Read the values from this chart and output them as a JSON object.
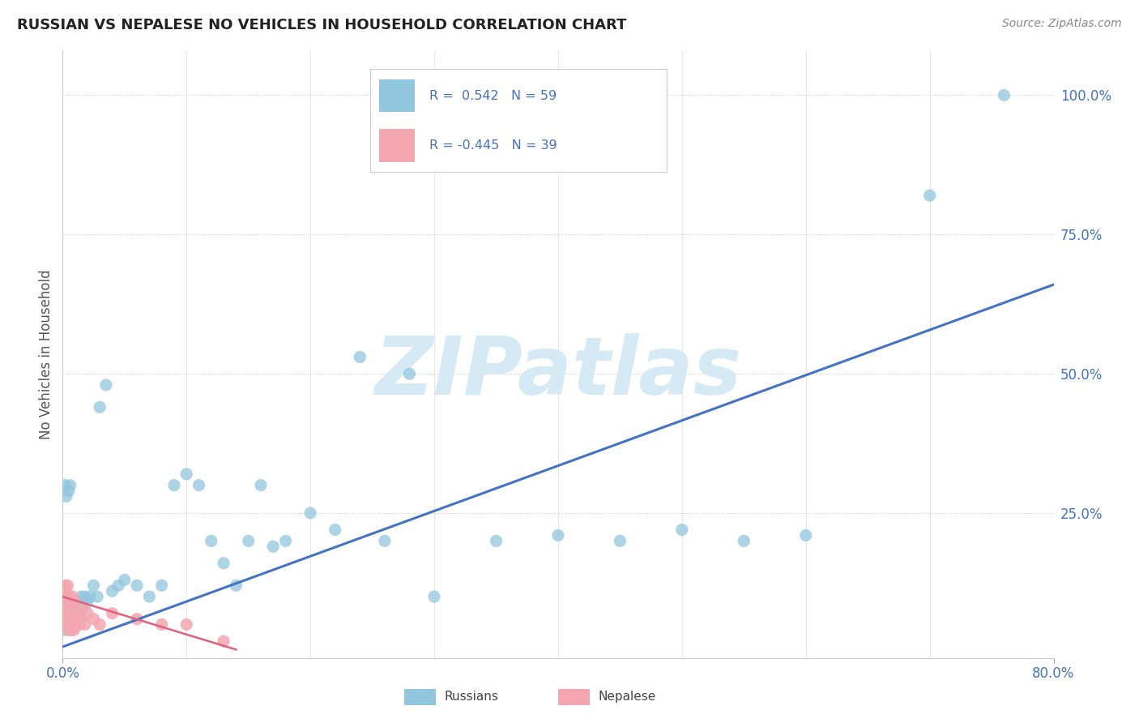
{
  "title": "RUSSIAN VS NEPALESE NO VEHICLES IN HOUSEHOLD CORRELATION CHART",
  "source": "Source: ZipAtlas.com",
  "ylabel": "No Vehicles in Household",
  "yticks": [
    0.0,
    0.25,
    0.5,
    0.75,
    1.0
  ],
  "ytick_labels": [
    "",
    "25.0%",
    "50.0%",
    "75.0%",
    "100.0%"
  ],
  "xlim": [
    0.0,
    0.8
  ],
  "ylim": [
    -0.01,
    1.08
  ],
  "russian_R": 0.542,
  "russian_N": 59,
  "nepalese_R": -0.445,
  "nepalese_N": 39,
  "russian_color": "#92C5DE",
  "nepalese_color": "#F4A7B0",
  "russian_line_color": "#4472C4",
  "nepalese_line_color": "#E06080",
  "watermark": "ZIPatlas",
  "watermark_color": "#D6EAF5",
  "background_color": "#FFFFFF",
  "russian_line_x0": 0.0,
  "russian_line_y0": 0.01,
  "russian_line_x1": 0.8,
  "russian_line_y1": 0.66,
  "nepalese_line_x0": 0.0,
  "nepalese_line_y0": 0.1,
  "nepalese_line_x1": 0.14,
  "nepalese_line_y1": 0.005,
  "russian_x": [
    0.001,
    0.002,
    0.002,
    0.003,
    0.003,
    0.004,
    0.004,
    0.005,
    0.005,
    0.006,
    0.006,
    0.007,
    0.007,
    0.008,
    0.009,
    0.01,
    0.011,
    0.012,
    0.013,
    0.014,
    0.015,
    0.016,
    0.018,
    0.02,
    0.022,
    0.025,
    0.028,
    0.03,
    0.035,
    0.04,
    0.045,
    0.05,
    0.06,
    0.07,
    0.08,
    0.09,
    0.1,
    0.11,
    0.12,
    0.13,
    0.14,
    0.15,
    0.16,
    0.17,
    0.18,
    0.2,
    0.22,
    0.24,
    0.26,
    0.28,
    0.3,
    0.35,
    0.4,
    0.45,
    0.5,
    0.55,
    0.6,
    0.7,
    0.76
  ],
  "russian_y": [
    0.04,
    0.07,
    0.3,
    0.08,
    0.28,
    0.06,
    0.06,
    0.07,
    0.29,
    0.08,
    0.3,
    0.07,
    0.08,
    0.07,
    0.08,
    0.09,
    0.08,
    0.07,
    0.09,
    0.08,
    0.1,
    0.09,
    0.1,
    0.09,
    0.1,
    0.12,
    0.1,
    0.44,
    0.48,
    0.11,
    0.12,
    0.13,
    0.12,
    0.1,
    0.12,
    0.3,
    0.32,
    0.3,
    0.2,
    0.16,
    0.12,
    0.2,
    0.3,
    0.19,
    0.2,
    0.25,
    0.22,
    0.53,
    0.2,
    0.5,
    0.1,
    0.2,
    0.21,
    0.2,
    0.22,
    0.2,
    0.21,
    0.82,
    1.0
  ],
  "nepalese_x": [
    0.001,
    0.001,
    0.002,
    0.002,
    0.002,
    0.003,
    0.003,
    0.003,
    0.004,
    0.004,
    0.004,
    0.005,
    0.005,
    0.005,
    0.006,
    0.006,
    0.007,
    0.007,
    0.008,
    0.008,
    0.009,
    0.009,
    0.01,
    0.01,
    0.011,
    0.012,
    0.013,
    0.014,
    0.015,
    0.016,
    0.018,
    0.02,
    0.025,
    0.03,
    0.04,
    0.06,
    0.08,
    0.1,
    0.13
  ],
  "nepalese_y": [
    0.05,
    0.08,
    0.06,
    0.09,
    0.12,
    0.05,
    0.08,
    0.11,
    0.06,
    0.09,
    0.12,
    0.04,
    0.07,
    0.1,
    0.05,
    0.09,
    0.04,
    0.08,
    0.06,
    0.1,
    0.04,
    0.07,
    0.05,
    0.09,
    0.05,
    0.06,
    0.07,
    0.05,
    0.06,
    0.08,
    0.05,
    0.07,
    0.06,
    0.05,
    0.07,
    0.06,
    0.05,
    0.05,
    0.02
  ]
}
